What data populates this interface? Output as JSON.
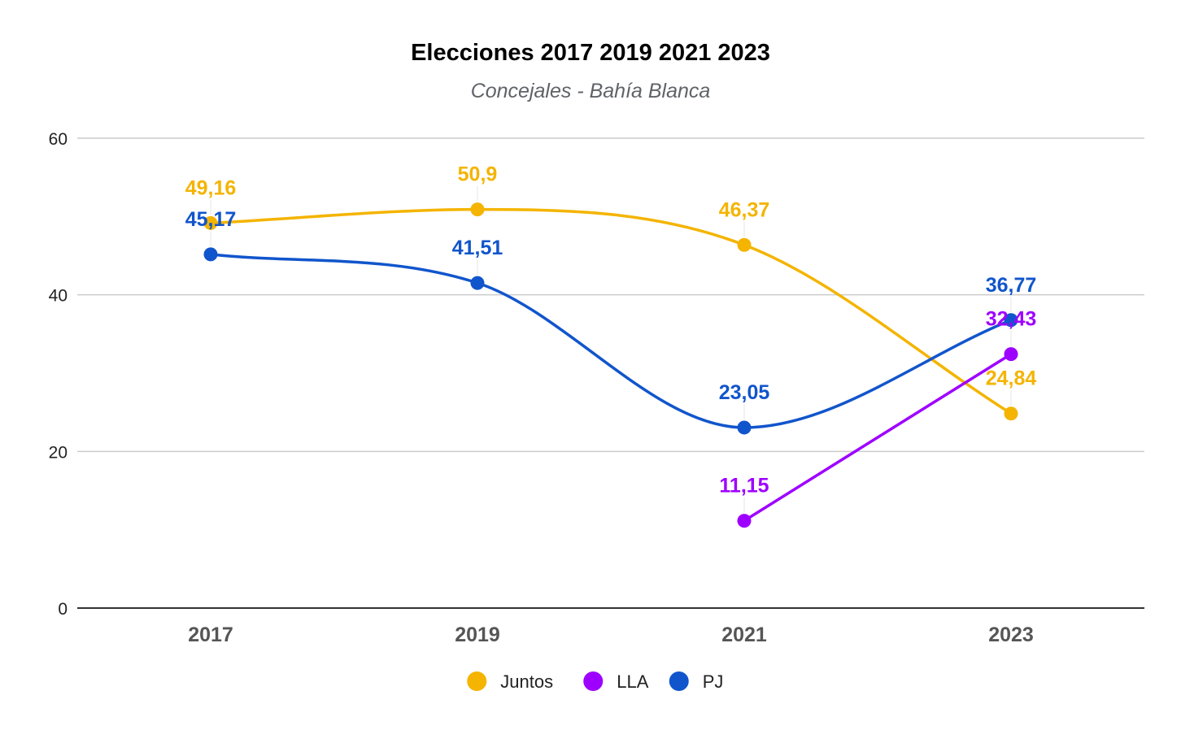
{
  "chart_data": {
    "type": "line",
    "title": "Elecciones 2017 2019 2021 2023",
    "subtitle": "Concejales - Bahía Blanca",
    "xlabel": "",
    "ylabel": "",
    "categories": [
      "2017",
      "2019",
      "2021",
      "2023"
    ],
    "ylim": [
      0,
      60
    ],
    "yticks": [
      0,
      20,
      40,
      60
    ],
    "grid": true,
    "legend_position": "bottom",
    "series": [
      {
        "name": "Juntos",
        "color": "#f4b400",
        "values": [
          49.16,
          50.9,
          46.37,
          24.84
        ],
        "labels": [
          "49,16",
          "50,9",
          "46,37",
          "24,84"
        ]
      },
      {
        "name": "LLA",
        "color": "#9e00ff",
        "values": [
          null,
          null,
          11.15,
          32.43
        ],
        "labels": [
          "",
          "",
          "11,15",
          "32,43"
        ]
      },
      {
        "name": "PJ",
        "color": "#1155cc",
        "values": [
          45.17,
          41.51,
          23.05,
          36.77
        ],
        "labels": [
          "45,17",
          "41,51",
          "23,05",
          "36,77"
        ]
      }
    ]
  }
}
